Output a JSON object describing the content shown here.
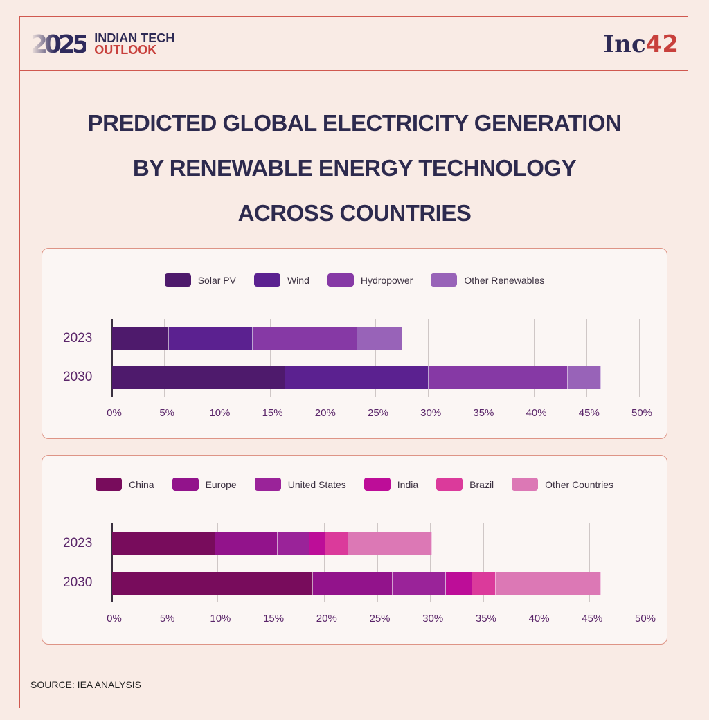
{
  "header": {
    "logo_year": "2025",
    "logo_line1": "INDIAN TECH",
    "logo_line2": "OUTLOOK",
    "brand": "Inc",
    "brand_num": "42"
  },
  "title_lines": [
    "PREDICTED GLOBAL ELECTRICITY GENERATION",
    "BY RENEWABLE ENERGY TECHNOLOGY",
    "ACROSS COUNTRIES"
  ],
  "source": "SOURCE: IEA ANALYSIS",
  "chart_data": [
    {
      "type": "bar",
      "orientation": "horizontal",
      "stacked": true,
      "categories": [
        "2023",
        "2030"
      ],
      "xlim": [
        0,
        50
      ],
      "xticks": [
        "0%",
        "5%",
        "10%",
        "15%",
        "20%",
        "25%",
        "30%",
        "35%",
        "40%",
        "45%",
        "50%"
      ],
      "grid": true,
      "legend": "top",
      "series": [
        {
          "name": "Solar PV",
          "color": "#4e1a6c",
          "values": [
            5.4,
            16.4
          ]
        },
        {
          "name": "Wind",
          "color": "#5b2190",
          "values": [
            7.9,
            13.6
          ]
        },
        {
          "name": "Hydropower",
          "color": "#8639a5",
          "values": [
            9.9,
            13.2
          ]
        },
        {
          "name": "Other Renewables",
          "color": "#9863b8",
          "values": [
            4.3,
            3.1
          ]
        }
      ]
    },
    {
      "type": "bar",
      "orientation": "horizontal",
      "stacked": true,
      "categories": [
        "2023",
        "2030"
      ],
      "xlim": [
        0,
        50
      ],
      "xticks": [
        "0%",
        "5%",
        "10%",
        "15%",
        "20%",
        "25%",
        "30%",
        "35%",
        "40%",
        "45%",
        "50%"
      ],
      "grid": true,
      "legend": "top",
      "series": [
        {
          "name": "China",
          "color": "#780c5c",
          "values": [
            9.7,
            18.9
          ]
        },
        {
          "name": "Europe",
          "color": "#92138b",
          "values": [
            5.9,
            7.5
          ]
        },
        {
          "name": "United States",
          "color": "#9a2399",
          "values": [
            3.0,
            5.0
          ]
        },
        {
          "name": "India",
          "color": "#bd0d98",
          "values": [
            1.5,
            2.5
          ]
        },
        {
          "name": "Brazil",
          "color": "#db3a9b",
          "values": [
            2.1,
            2.2
          ]
        },
        {
          "name": "Other Countries",
          "color": "#dc78b5",
          "values": [
            7.9,
            9.9
          ]
        }
      ]
    }
  ]
}
